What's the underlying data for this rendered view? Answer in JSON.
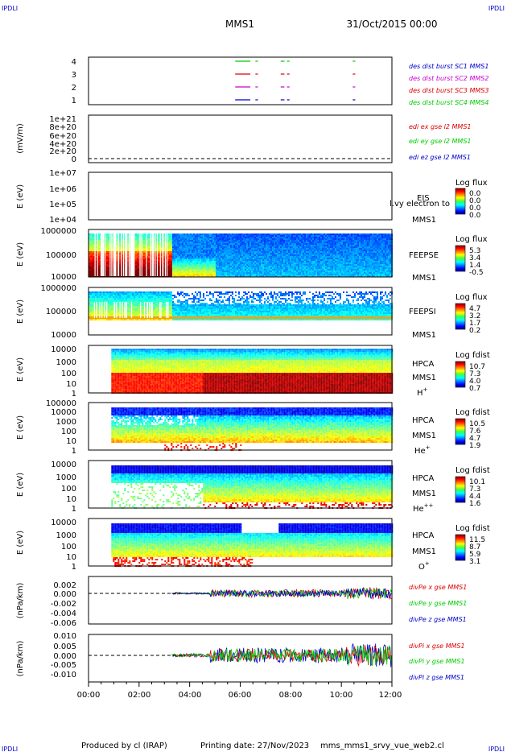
{
  "header": {
    "corner_label": "IPDLI",
    "title": "MMS1",
    "date": "31/Oct/2015 00:00"
  },
  "footer": {
    "produced_by": "Produced by cl (IRAP)",
    "printing_date": "Printing date: 27/Nov/2023",
    "script_name": "mms_mms1_srvy_vue_web2.cl"
  },
  "colors": {
    "blue": "#0000cc",
    "magenta": "#cc00cc",
    "red": "#dd0000",
    "green": "#00cc00",
    "black": "#000000"
  },
  "x_axis": {
    "range_hours": [
      0,
      12
    ],
    "tick_labels": [
      "00:00",
      "02:00",
      "04:00",
      "06:00",
      "08:00",
      "10:00",
      "12:00"
    ]
  },
  "chart_data": [
    {
      "type": "timeline",
      "id": "burst",
      "yticks": [
        "4",
        "3",
        "2",
        "1"
      ],
      "legend": [
        {
          "text": "des dist burst SC1 MMS1",
          "color": "#0000cc"
        },
        {
          "text": "des dist burst SC2 MMS2",
          "color": "#cc00cc"
        },
        {
          "text": "des dist burst SC3 MMS3",
          "color": "#dd0000"
        },
        {
          "text": "des dist burst SC4 MMS4",
          "color": "#00cc00"
        }
      ],
      "series": [
        {
          "level": 4,
          "color": "#00cc00",
          "intervals": [
            [
              5.8,
              6.4
            ],
            [
              6.6,
              6.7
            ],
            [
              7.6,
              7.75
            ],
            [
              7.85,
              7.95
            ],
            [
              10.45,
              10.55
            ]
          ]
        },
        {
          "level": 3,
          "color": "#dd0000",
          "intervals": [
            [
              5.8,
              6.4
            ],
            [
              6.6,
              6.7
            ],
            [
              7.6,
              7.75
            ],
            [
              7.85,
              7.95
            ],
            [
              10.45,
              10.55
            ]
          ]
        },
        {
          "level": 2,
          "color": "#cc00cc",
          "intervals": [
            [
              5.8,
              6.4
            ],
            [
              6.6,
              6.7
            ],
            [
              7.6,
              7.75
            ],
            [
              7.85,
              7.95
            ],
            [
              10.45,
              10.55
            ]
          ]
        },
        {
          "level": 1,
          "color": "#0000cc",
          "intervals": [
            [
              5.8,
              6.4
            ],
            [
              6.6,
              6.7
            ],
            [
              7.6,
              7.75
            ],
            [
              7.85,
              7.95
            ],
            [
              10.45,
              10.55
            ]
          ]
        }
      ]
    },
    {
      "type": "line",
      "id": "edi",
      "ylabel": "(mV/m)",
      "yticks": [
        "1e+21",
        "8e+20",
        "6e+20",
        "4e+20",
        "2e+20",
        "0"
      ],
      "ylim": [
        0,
        1e+21
      ],
      "legend": [
        {
          "text": "edi ex gse l2 MMS1",
          "color": "#dd0000"
        },
        {
          "text": "edi ey gse l2 MMS1",
          "color": "#00cc00"
        },
        {
          "text": "edi ez gse l2 MMS1",
          "color": "#0000cc"
        }
      ]
    },
    {
      "type": "heatmap",
      "id": "eis",
      "ylabel": "E (eV)",
      "yticks": [
        "1e+07",
        "1e+06",
        "1e+05",
        "1e+04"
      ],
      "instrument_label": "EIS",
      "overlay_text": "l.vy electron to",
      "spacecraft_label": "MMS1",
      "colorbar_title": "Log flux",
      "colorbar_ticks": [
        "0.0",
        "0.0",
        "0.0",
        "0.0"
      ]
    },
    {
      "type": "heatmap",
      "id": "feepse",
      "ylabel": "E (eV)",
      "yticks": [
        "1000000",
        "100000",
        "10000"
      ],
      "instrument_label": "FEEPSE",
      "spacecraft_label": "MMS1",
      "colorbar_title": "Log flux",
      "colorbar_ticks": [
        "5.3",
        "3.4",
        "1.4",
        "-0.5"
      ]
    },
    {
      "type": "heatmap",
      "id": "feepsi",
      "ylabel": "E (eV)",
      "yticks": [
        "1000000",
        "100000",
        "10000"
      ],
      "instrument_label": "FEEPSI",
      "spacecraft_label": "MMS1",
      "colorbar_title": "Log flux",
      "colorbar_ticks": [
        "4.7",
        "3.2",
        "1.7",
        "0.2"
      ]
    },
    {
      "type": "heatmap",
      "id": "hpca_h",
      "ylabel": "E (eV)",
      "yticks": [
        "10000",
        "1000",
        "100",
        "10",
        "1"
      ],
      "instrument_label": "HPCA",
      "spacecraft_label": "MMS1",
      "species": "H",
      "species_charge": "+",
      "colorbar_title": "Log fdist",
      "colorbar_ticks": [
        "10.7",
        "7.3",
        "4.0",
        "0.7"
      ]
    },
    {
      "type": "heatmap",
      "id": "hpca_he1",
      "ylabel": "E (eV)",
      "yticks": [
        "100000",
        "10000",
        "1000",
        "100",
        "10",
        "1"
      ],
      "instrument_label": "HPCA",
      "spacecraft_label": "MMS1",
      "species": "He",
      "species_charge": "+",
      "colorbar_title": "Log fdist",
      "colorbar_ticks": [
        "10.5",
        "7.6",
        "4.7",
        "1.9"
      ]
    },
    {
      "type": "heatmap",
      "id": "hpca_he2",
      "ylabel": "E (eV)",
      "yticks": [
        "10000",
        "1000",
        "100",
        "10",
        "1"
      ],
      "instrument_label": "HPCA",
      "spacecraft_label": "MMS1",
      "species": "He",
      "species_charge": "++",
      "colorbar_title": "Log fdist",
      "colorbar_ticks": [
        "10.1",
        "7.3",
        "4.4",
        "1.6"
      ]
    },
    {
      "type": "heatmap",
      "id": "hpca_o",
      "ylabel": "E (eV)",
      "yticks": [
        "10000",
        "1000",
        "100",
        "10",
        "1"
      ],
      "instrument_label": "HPCA",
      "spacecraft_label": "MMS1",
      "species": "O",
      "species_charge": "+",
      "colorbar_title": "Log fdist",
      "colorbar_ticks": [
        "11.5",
        "8.7",
        "5.9",
        "3.1"
      ]
    },
    {
      "type": "line",
      "id": "divpe",
      "ylabel": "(nPa/km)",
      "yticks": [
        "0.002",
        "0.000",
        "-0.002",
        "-0.004",
        "-0.006"
      ],
      "ylim": [
        -0.006,
        0.003
      ],
      "legend": [
        {
          "text": "divPe x gse MMS1",
          "color": "#dd0000"
        },
        {
          "text": "divPe y gse MMS1",
          "color": "#00cc00"
        },
        {
          "text": "divPe z gse MMS1",
          "color": "#0000cc"
        }
      ]
    },
    {
      "type": "line",
      "id": "divpi",
      "ylabel": "(nPa/km)",
      "yticks": [
        "0.010",
        "0.005",
        "0.000",
        "-0.005",
        "-0.010"
      ],
      "ylim": [
        -0.013,
        0.011
      ],
      "legend": [
        {
          "text": "divPi x gse MMS1",
          "color": "#dd0000"
        },
        {
          "text": "divPi y gse MMS1",
          "color": "#00cc00"
        },
        {
          "text": "divPi z gse MMS1",
          "color": "#0000cc"
        }
      ]
    }
  ]
}
